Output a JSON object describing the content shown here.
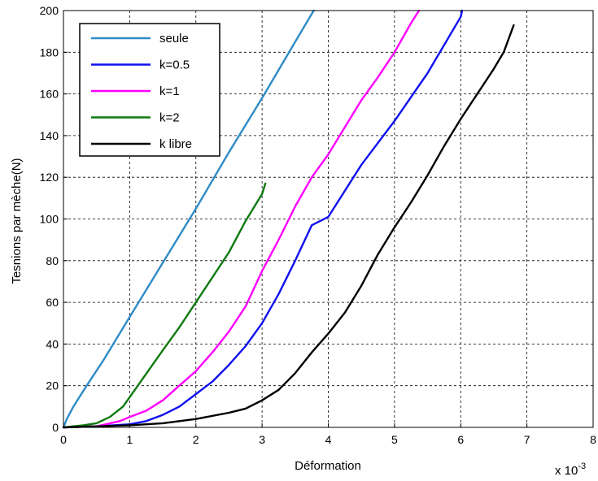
{
  "chart_data": {
    "type": "line",
    "title": "",
    "xlabel": "Déformation",
    "ylabel": "Tesnions par mèche(N)",
    "x_multiplier": "x 10",
    "x_multiplier_exp": "-3",
    "xlim": [
      0,
      8
    ],
    "ylim": [
      0,
      200
    ],
    "xticks": [
      0,
      1,
      2,
      3,
      4,
      5,
      6,
      7,
      8
    ],
    "yticks": [
      0,
      20,
      40,
      60,
      80,
      100,
      120,
      140,
      160,
      180,
      200
    ],
    "grid": true,
    "grid_style": "dashed",
    "legend_position": "top-left",
    "series": [
      {
        "name": "seule",
        "color": "#2e8bc7",
        "points": [
          [
            0,
            0
          ],
          [
            0.05,
            4
          ],
          [
            0.15,
            10
          ],
          [
            0.35,
            20
          ],
          [
            0.6,
            32
          ],
          [
            1.0,
            53
          ],
          [
            1.5,
            79
          ],
          [
            2.0,
            105
          ],
          [
            2.5,
            132
          ],
          [
            3.0,
            158
          ],
          [
            3.5,
            185
          ],
          [
            3.78,
            200
          ]
        ]
      },
      {
        "name": "k=0.5",
        "color": "#1010f0",
        "points": [
          [
            0,
            0
          ],
          [
            0.5,
            0.5
          ],
          [
            1.0,
            1.5
          ],
          [
            1.25,
            3
          ],
          [
            1.5,
            6
          ],
          [
            1.75,
            10
          ],
          [
            2.0,
            16
          ],
          [
            2.25,
            22
          ],
          [
            2.5,
            30
          ],
          [
            2.75,
            39
          ],
          [
            3.0,
            50
          ],
          [
            3.25,
            64
          ],
          [
            3.5,
            80
          ],
          [
            3.75,
            97
          ],
          [
            4.0,
            101
          ],
          [
            4.5,
            126
          ],
          [
            5.0,
            147
          ],
          [
            5.5,
            170
          ],
          [
            6.0,
            197
          ],
          [
            6.02,
            200
          ]
        ]
      },
      {
        "name": "k=1",
        "color": "#ff00ff",
        "points": [
          [
            0,
            0
          ],
          [
            0.5,
            0.5
          ],
          [
            0.85,
            3
          ],
          [
            1.0,
            5
          ],
          [
            1.25,
            8
          ],
          [
            1.5,
            13
          ],
          [
            1.75,
            20
          ],
          [
            2.0,
            27
          ],
          [
            2.25,
            36
          ],
          [
            2.5,
            46
          ],
          [
            2.75,
            58
          ],
          [
            3.0,
            75
          ],
          [
            3.25,
            90
          ],
          [
            3.5,
            106
          ],
          [
            3.75,
            120
          ],
          [
            4.0,
            131
          ],
          [
            4.25,
            144
          ],
          [
            4.5,
            157
          ],
          [
            4.75,
            168
          ],
          [
            5.0,
            180
          ],
          [
            5.25,
            194
          ],
          [
            5.37,
            200
          ]
        ]
      },
      {
        "name": "k=2",
        "color": "#0f7a0f",
        "points": [
          [
            0,
            0
          ],
          [
            0.3,
            1
          ],
          [
            0.5,
            2
          ],
          [
            0.7,
            5
          ],
          [
            0.9,
            10
          ],
          [
            1.1,
            19
          ],
          [
            1.3,
            28
          ],
          [
            1.5,
            37
          ],
          [
            1.75,
            48
          ],
          [
            2.0,
            60
          ],
          [
            2.25,
            72
          ],
          [
            2.5,
            84
          ],
          [
            2.75,
            99
          ],
          [
            3.0,
            112
          ],
          [
            3.05,
            117
          ]
        ]
      },
      {
        "name": "k libre",
        "color": "#000000",
        "points": [
          [
            0,
            0
          ],
          [
            1.0,
            1
          ],
          [
            1.5,
            2
          ],
          [
            2.0,
            4
          ],
          [
            2.5,
            7
          ],
          [
            2.75,
            9
          ],
          [
            3.0,
            13
          ],
          [
            3.25,
            18
          ],
          [
            3.5,
            26
          ],
          [
            3.75,
            36
          ],
          [
            4.0,
            45
          ],
          [
            4.25,
            55
          ],
          [
            4.5,
            68
          ],
          [
            4.75,
            83
          ],
          [
            5.0,
            96
          ],
          [
            5.25,
            108
          ],
          [
            5.5,
            121
          ],
          [
            5.75,
            135
          ],
          [
            6.0,
            148
          ],
          [
            6.25,
            160
          ],
          [
            6.5,
            172
          ],
          [
            6.65,
            180
          ],
          [
            6.8,
            193
          ]
        ]
      }
    ]
  }
}
